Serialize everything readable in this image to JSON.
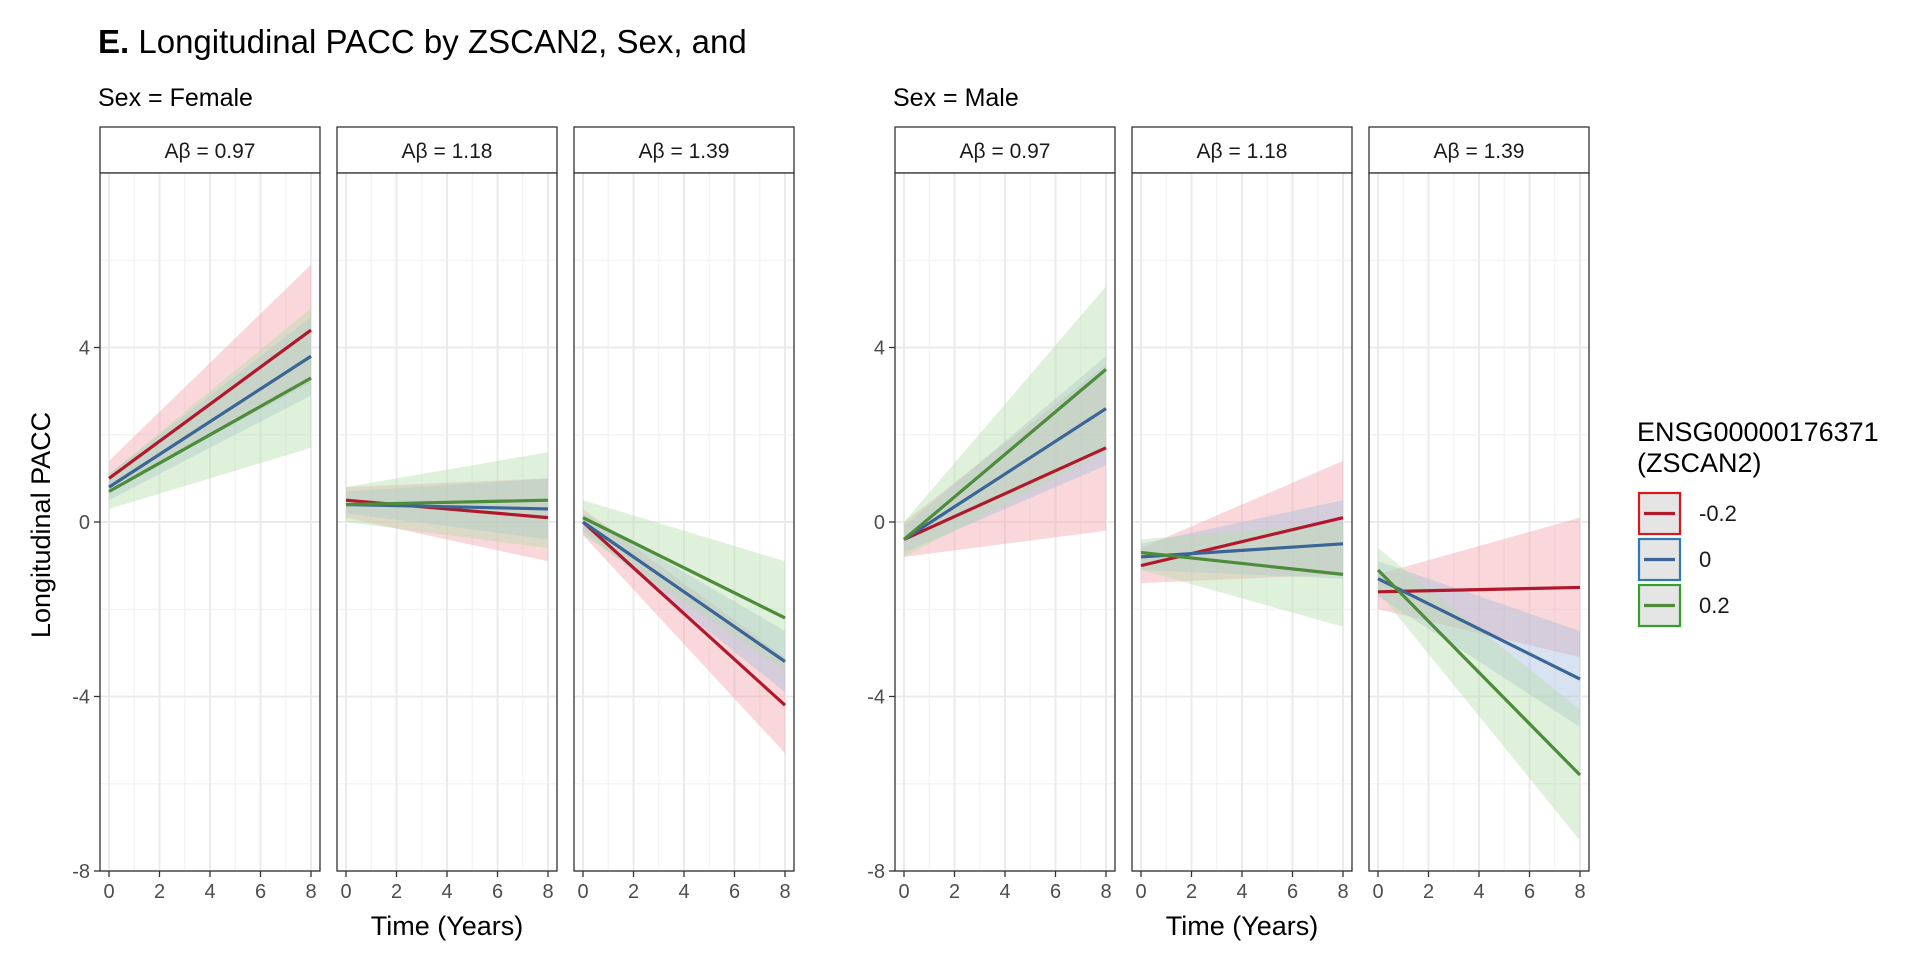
{
  "title_prefix": "E.",
  "title_text": "Longitudinal PACC by ZSCAN2, Sex, and",
  "ylabel": "Longitudinal PACC",
  "xlabel": "Time (Years)",
  "legend": {
    "title_line1": "ENSG00000176371",
    "title_line2": "(ZSCAN2)",
    "items": [
      {
        "label": "-0.2",
        "line_color": "#B2182B",
        "box_color": "#D7191C"
      },
      {
        "label": "0",
        "line_color": "#3A6596",
        "box_color": "#2C7BB6"
      },
      {
        "label": "0.2",
        "line_color": "#4C8C3A",
        "box_color": "#33A02C"
      }
    ]
  },
  "colors": {
    "neg": "#D7191C",
    "zero": "#2C7BB6",
    "pos": "#33A02C",
    "band_neg": "#F4A6AE",
    "band_zero": "#A9BFDD",
    "band_pos": "#B7DDB0",
    "panel_grid": "#EBEBEB",
    "strip_bg": "#FFFFFF"
  },
  "chart_data": {
    "type": "line",
    "x_ticks": [
      0,
      2,
      4,
      6,
      8
    ],
    "y_ticks": [
      -8,
      -4,
      0,
      4
    ],
    "xlim": [
      0,
      8
    ],
    "ylim": [
      -8,
      8
    ],
    "groups": [
      {
        "sex_label": "Sex = Female",
        "panels": [
          {
            "strip": "Aβ = 0.97",
            "series": [
              {
                "name": "-0.2",
                "x": [
                  0,
                  8
                ],
                "y": [
                  1.0,
                  4.4
                ],
                "lo": [
                  0.7,
                  3.2
                ],
                "hi": [
                  1.4,
                  5.9
                ]
              },
              {
                "name": "0",
                "x": [
                  0,
                  8
                ],
                "y": [
                  0.8,
                  3.8
                ],
                "lo": [
                  0.5,
                  2.9
                ],
                "hi": [
                  1.1,
                  4.7
                ]
              },
              {
                "name": "0.2",
                "x": [
                  0,
                  8
                ],
                "y": [
                  0.7,
                  3.3
                ],
                "lo": [
                  0.3,
                  1.7
                ],
                "hi": [
                  1.1,
                  4.9
                ]
              }
            ]
          },
          {
            "strip": "Aβ = 1.18",
            "series": [
              {
                "name": "-0.2",
                "x": [
                  0,
                  8
                ],
                "y": [
                  0.5,
                  0.1
                ],
                "lo": [
                  0.1,
                  -0.9
                ],
                "hi": [
                  0.8,
                  1.0
                ]
              },
              {
                "name": "0",
                "x": [
                  0,
                  8
                ],
                "y": [
                  0.4,
                  0.3
                ],
                "lo": [
                  0.2,
                  -0.4
                ],
                "hi": [
                  0.7,
                  1.0
                ]
              },
              {
                "name": "0.2",
                "x": [
                  0,
                  8
                ],
                "y": [
                  0.4,
                  0.5
                ],
                "lo": [
                  0.0,
                  -0.6
                ],
                "hi": [
                  0.8,
                  1.6
                ]
              }
            ]
          },
          {
            "strip": "Aβ = 1.39",
            "series": [
              {
                "name": "-0.2",
                "x": [
                  0,
                  8
                ],
                "y": [
                  0.0,
                  -4.2
                ],
                "lo": [
                  -0.3,
                  -5.3
                ],
                "hi": [
                  0.3,
                  -3.1
                ]
              },
              {
                "name": "0",
                "x": [
                  0,
                  8
                ],
                "y": [
                  0.0,
                  -3.2
                ],
                "lo": [
                  -0.2,
                  -3.9
                ],
                "hi": [
                  0.2,
                  -2.5
                ]
              },
              {
                "name": "0.2",
                "x": [
                  0,
                  8
                ],
                "y": [
                  0.1,
                  -2.2
                ],
                "lo": [
                  -0.3,
                  -3.4
                ],
                "hi": [
                  0.5,
                  -0.9
                ]
              }
            ]
          }
        ]
      },
      {
        "sex_label": "Sex = Male",
        "panels": [
          {
            "strip": "Aβ = 0.97",
            "series": [
              {
                "name": "-0.2",
                "x": [
                  0,
                  8
                ],
                "y": [
                  -0.4,
                  1.7
                ],
                "lo": [
                  -0.8,
                  -0.2
                ],
                "hi": [
                  0.0,
                  3.6
                ]
              },
              {
                "name": "0",
                "x": [
                  0,
                  8
                ],
                "y": [
                  -0.4,
                  2.6
                ],
                "lo": [
                  -0.7,
                  1.3
                ],
                "hi": [
                  -0.1,
                  3.8
                ]
              },
              {
                "name": "0.2",
                "x": [
                  0,
                  8
                ],
                "y": [
                  -0.4,
                  3.5
                ],
                "lo": [
                  -0.8,
                  1.6
                ],
                "hi": [
                  0.0,
                  5.4
                ]
              }
            ]
          },
          {
            "strip": "Aβ = 1.18",
            "series": [
              {
                "name": "-0.2",
                "x": [
                  0,
                  8
                ],
                "y": [
                  -1.0,
                  0.1
                ],
                "lo": [
                  -1.4,
                  -1.2
                ],
                "hi": [
                  -0.6,
                  1.4
                ]
              },
              {
                "name": "0",
                "x": [
                  0,
                  8
                ],
                "y": [
                  -0.8,
                  -0.5
                ],
                "lo": [
                  -1.1,
                  -1.3
                ],
                "hi": [
                  -0.5,
                  0.5
                ]
              },
              {
                "name": "0.2",
                "x": [
                  0,
                  8
                ],
                "y": [
                  -0.7,
                  -1.2
                ],
                "lo": [
                  -1.1,
                  -2.4
                ],
                "hi": [
                  -0.4,
                  0.0
                ]
              }
            ]
          },
          {
            "strip": "Aβ = 1.39",
            "series": [
              {
                "name": "-0.2",
                "x": [
                  0,
                  8
                ],
                "y": [
                  -1.6,
                  -1.5
                ],
                "lo": [
                  -2.0,
                  -3.1
                ],
                "hi": [
                  -1.2,
                  0.1
                ]
              },
              {
                "name": "0",
                "x": [
                  0,
                  8
                ],
                "y": [
                  -1.3,
                  -3.6
                ],
                "lo": [
                  -1.7,
                  -4.7
                ],
                "hi": [
                  -0.9,
                  -2.5
                ]
              },
              {
                "name": "0.2",
                "x": [
                  0,
                  8
                ],
                "y": [
                  -1.1,
                  -5.8
                ],
                "lo": [
                  -1.6,
                  -7.3
                ],
                "hi": [
                  -0.6,
                  -4.3
                ]
              }
            ]
          }
        ]
      }
    ]
  }
}
